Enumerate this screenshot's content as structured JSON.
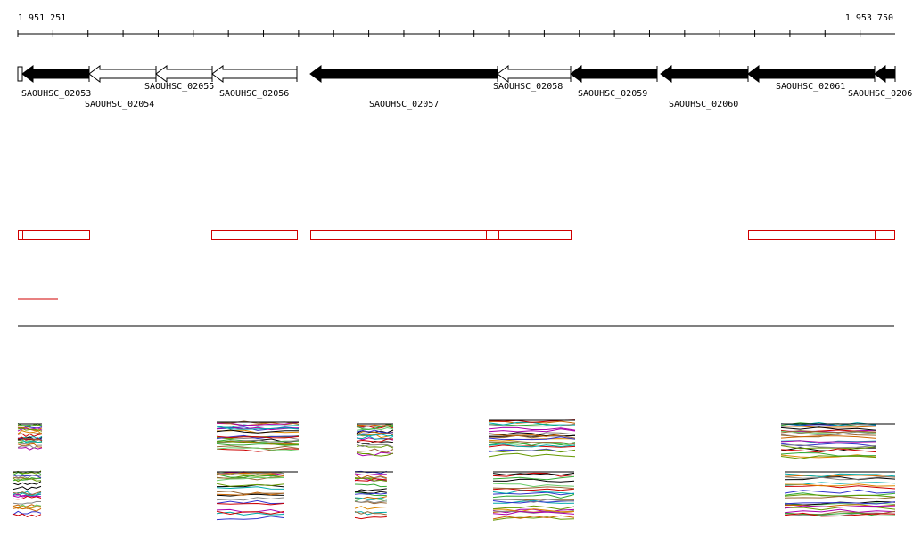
{
  "ruler": {
    "start": "1 951 251",
    "end": "1 953 750"
  },
  "genes": [
    {
      "label": "SAOUHSC_02053"
    },
    {
      "label": "SAOUHSC_02054"
    },
    {
      "label": "SAOUHSC_02055"
    },
    {
      "label": "SAOUHSC_02056"
    },
    {
      "label": "SAOUHSC_02057"
    },
    {
      "label": "SAOUHSC_02058"
    },
    {
      "label": "SAOUHSC_02059"
    },
    {
      "label": "SAOUHSC_02060"
    },
    {
      "label": "SAOUHSC_02061"
    },
    {
      "label": "SAOUHSC_0206"
    }
  ]
}
